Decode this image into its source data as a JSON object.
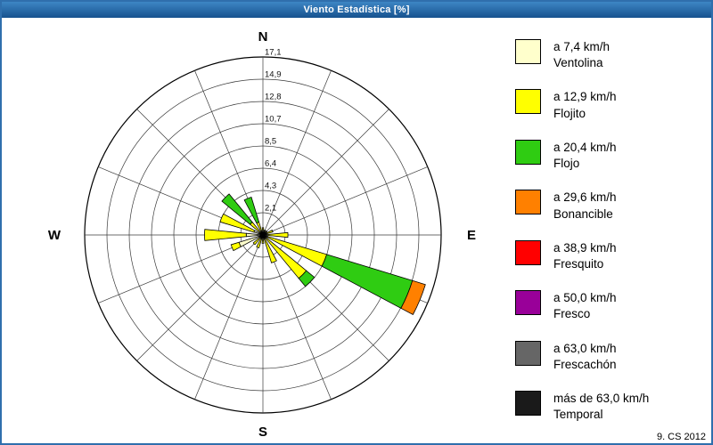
{
  "window": {
    "title": "Viento Estadística [%]",
    "credit": "9. CS 2012",
    "titlebar_color": "#17528e",
    "border_color": "#2f6fad"
  },
  "legend": [
    {
      "speed": "a 7,4 km/h",
      "name": "Ventolina",
      "color": "#FFFFCC"
    },
    {
      "speed": "a 12,9 km/h",
      "name": "Flojito",
      "color": "#FFFF00"
    },
    {
      "speed": "a 20,4 km/h",
      "name": "Flojo",
      "color": "#2FCC12"
    },
    {
      "speed": "a 29,6 km/h",
      "name": "Bonancible",
      "color": "#FF8000"
    },
    {
      "speed": "a 38,9 km/h",
      "name": "Fresquito",
      "color": "#FF0000"
    },
    {
      "speed": "a 50,0 km/h",
      "name": "Fresco",
      "color": "#990099"
    },
    {
      "speed": "a 63,0 km/h",
      "name": "Frescachón",
      "color": "#666666"
    },
    {
      "speed": "más de 63,0 km/h",
      "name": "Temporal",
      "color": "#1A1A1A"
    }
  ],
  "chart_data": {
    "type": "windrose",
    "title": "Viento Estadística [%]",
    "units": "%",
    "rmax": 17.1,
    "rings": 8,
    "radial_ticks": [
      "2,1",
      "4,3",
      "6,4",
      "8,5",
      "10,7",
      "12,8",
      "14,9",
      "17,1"
    ],
    "compass": {
      "n": "N",
      "e": "E",
      "s": "S",
      "w": "W"
    },
    "categories": [
      "Ventolina",
      "Flojito",
      "Flojo",
      "Bonancible",
      "Fresquito",
      "Fresco",
      "Frescachón",
      "Temporal"
    ],
    "petals": [
      {
        "dir": 0,
        "values": [
          0.2,
          0.5
        ]
      },
      {
        "dir": 22.5,
        "values": [
          0.2,
          0.3
        ]
      },
      {
        "dir": 45,
        "values": [
          0.2,
          0.3
        ]
      },
      {
        "dir": 67.5,
        "values": [
          0.3,
          0.7
        ]
      },
      {
        "dir": 90,
        "values": [
          0.4,
          2.0
        ]
      },
      {
        "dir": 112.5,
        "values": [
          0.5,
          5.9,
          8.6,
          1.3
        ]
      },
      {
        "dir": 135,
        "values": [
          0.4,
          5.0,
          1.0
        ]
      },
      {
        "dir": 157.5,
        "values": [
          0.3,
          2.5
        ]
      },
      {
        "dir": 180,
        "values": [
          0.2,
          0.6
        ]
      },
      {
        "dir": 202.5,
        "values": [
          0.3,
          1.0
        ]
      },
      {
        "dir": 225,
        "values": [
          0.3,
          0.9
        ]
      },
      {
        "dir": 247.5,
        "values": [
          2.4,
          0.8
        ]
      },
      {
        "dir": 270,
        "values": [
          1.6,
          4.0
        ]
      },
      {
        "dir": 292.5,
        "values": [
          0.9,
          3.4
        ]
      },
      {
        "dir": 315,
        "values": [
          0.3,
          1.3,
          3.5
        ]
      },
      {
        "dir": 337.5,
        "values": [
          0.3,
          1.0,
          2.5
        ]
      }
    ]
  }
}
